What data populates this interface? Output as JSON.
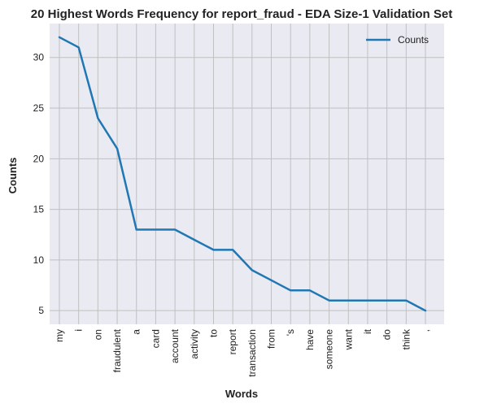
{
  "chart_data": {
    "type": "line",
    "title": "20 Highest Words Frequency for report_fraud - EDA Size-1 Validation Set",
    "xlabel": "Words",
    "ylabel": "Counts",
    "categories": [
      "my",
      "i",
      "on",
      "fraudulent",
      "a",
      "card",
      "account",
      "activity",
      "to",
      "report",
      "transaction",
      "from",
      "'s",
      "have",
      "someone",
      "want",
      "it",
      "do",
      "think",
      ","
    ],
    "series": [
      {
        "name": "Counts",
        "values": [
          32,
          31,
          24,
          21,
          13,
          13,
          13,
          12,
          11,
          11,
          9,
          8,
          7,
          7,
          6,
          6,
          6,
          6,
          6,
          5
        ]
      }
    ],
    "yticks": [
      5,
      10,
      15,
      20,
      25,
      30
    ],
    "ylim": [
      3.65,
      33.35
    ],
    "grid": true,
    "legend_position": "top-right",
    "line_color": "#1f77b4",
    "plot_background": "#eaeaf2",
    "grid_color": "#c0c0c0"
  }
}
